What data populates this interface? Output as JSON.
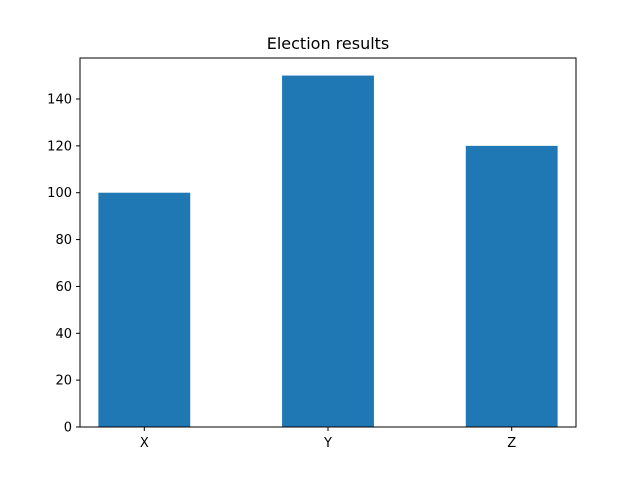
{
  "chart_data": {
    "type": "bar",
    "title": "Election results",
    "xlabel": "",
    "ylabel": "",
    "categories": [
      "X",
      "Y",
      "Z"
    ],
    "values": [
      100,
      150,
      120
    ],
    "ylim": [
      0,
      157.5
    ],
    "yticks": [
      0,
      20,
      40,
      60,
      80,
      100,
      120,
      140
    ],
    "grid": false,
    "bar_color": "#1f77b4"
  }
}
